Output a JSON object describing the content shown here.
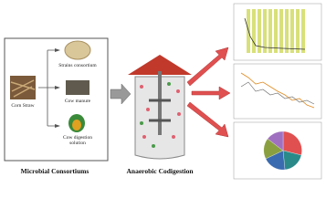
{
  "left_panel": {
    "title": "Microbial Consortiums",
    "source": "Corn Straw",
    "items": [
      "Strains consortium",
      "Cow manure",
      "Cow digestion solution"
    ]
  },
  "center": {
    "title": "Anaerobic Codigestion"
  }
}
